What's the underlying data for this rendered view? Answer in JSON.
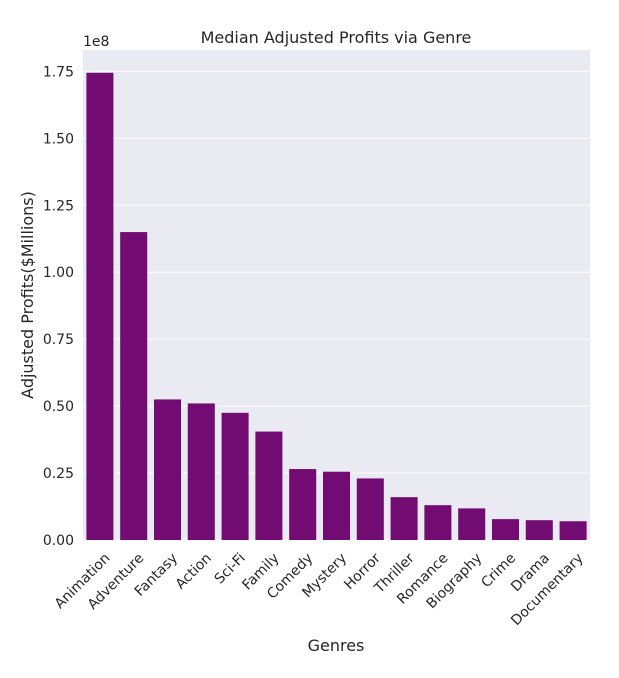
{
  "chart_data": {
    "type": "bar",
    "title": "Median Adjusted Profits via Genre",
    "xlabel": "Genres",
    "ylabel": "Adjusted Profits($Millions)",
    "offset_label": "1e8",
    "categories": [
      "Animation",
      "Adventure",
      "Fantasy",
      "Action",
      "Sci-Fi",
      "Family",
      "Comedy",
      "Mystery",
      "Horror",
      "Thriller",
      "Romance",
      "Biography",
      "Crime",
      "Drama",
      "Documentary"
    ],
    "values": [
      1.745,
      1.15,
      0.525,
      0.51,
      0.475,
      0.405,
      0.265,
      0.255,
      0.23,
      0.16,
      0.13,
      0.118,
      0.078,
      0.074,
      0.07
    ],
    "value_scale": 100000000,
    "yticks": [
      0.0,
      0.25,
      0.5,
      0.75,
      1.0,
      1.25,
      1.5,
      1.75
    ],
    "ytick_labels": [
      "0.00",
      "0.25",
      "0.50",
      "0.75",
      "1.00",
      "1.25",
      "1.50",
      "1.75"
    ],
    "ylim": [
      0,
      1.83
    ],
    "grid": true,
    "bar_color": "#720c72",
    "background_color": "#eaeaf2",
    "grid_color": "#ffffff"
  }
}
